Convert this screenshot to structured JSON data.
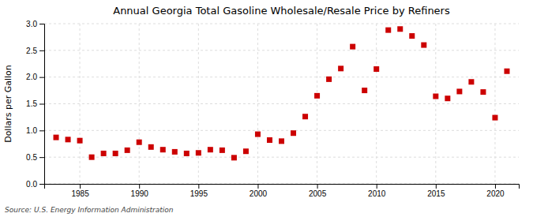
{
  "chart_data": {
    "type": "scatter",
    "title": "Annual Georgia Total Gasoline Wholesale/Resale Price by Refiners",
    "ylabel": "Dollars per Gallon",
    "source": "Source: U.S. Energy Information Administration",
    "x": [
      1983,
      1984,
      1985,
      1986,
      1987,
      1988,
      1989,
      1990,
      1991,
      1992,
      1993,
      1994,
      1995,
      1996,
      1997,
      1998,
      1999,
      2000,
      2001,
      2002,
      2003,
      2004,
      2005,
      2006,
      2007,
      2008,
      2009,
      2010,
      2011,
      2012,
      2013,
      2014,
      2015,
      2016,
      2017,
      2018,
      2019,
      2020,
      2021
    ],
    "values": [
      0.87,
      0.83,
      0.81,
      0.5,
      0.57,
      0.57,
      0.63,
      0.78,
      0.69,
      0.64,
      0.6,
      0.57,
      0.58,
      0.64,
      0.63,
      0.49,
      0.61,
      0.93,
      0.82,
      0.8,
      0.95,
      1.26,
      1.65,
      1.96,
      2.16,
      2.57,
      1.75,
      2.15,
      2.88,
      2.9,
      2.77,
      2.6,
      1.64,
      1.6,
      1.73,
      1.91,
      1.72,
      1.24,
      2.11
    ],
    "xlim": [
      1982,
      2022
    ],
    "ylim": [
      0.0,
      3.0
    ],
    "xticks": [
      1985,
      1990,
      1995,
      2000,
      2005,
      2010,
      2015,
      2020
    ],
    "yticks": [
      {
        "value": 0,
        "label": "0.0"
      },
      0.5,
      {
        "value": 1,
        "label": "1.0"
      },
      1.5,
      {
        "value": 2,
        "label": "2.0"
      },
      2.5,
      {
        "value": 3,
        "label": "3.0"
      }
    ],
    "color": "#cc0000",
    "marker": "square",
    "grid": true
  }
}
